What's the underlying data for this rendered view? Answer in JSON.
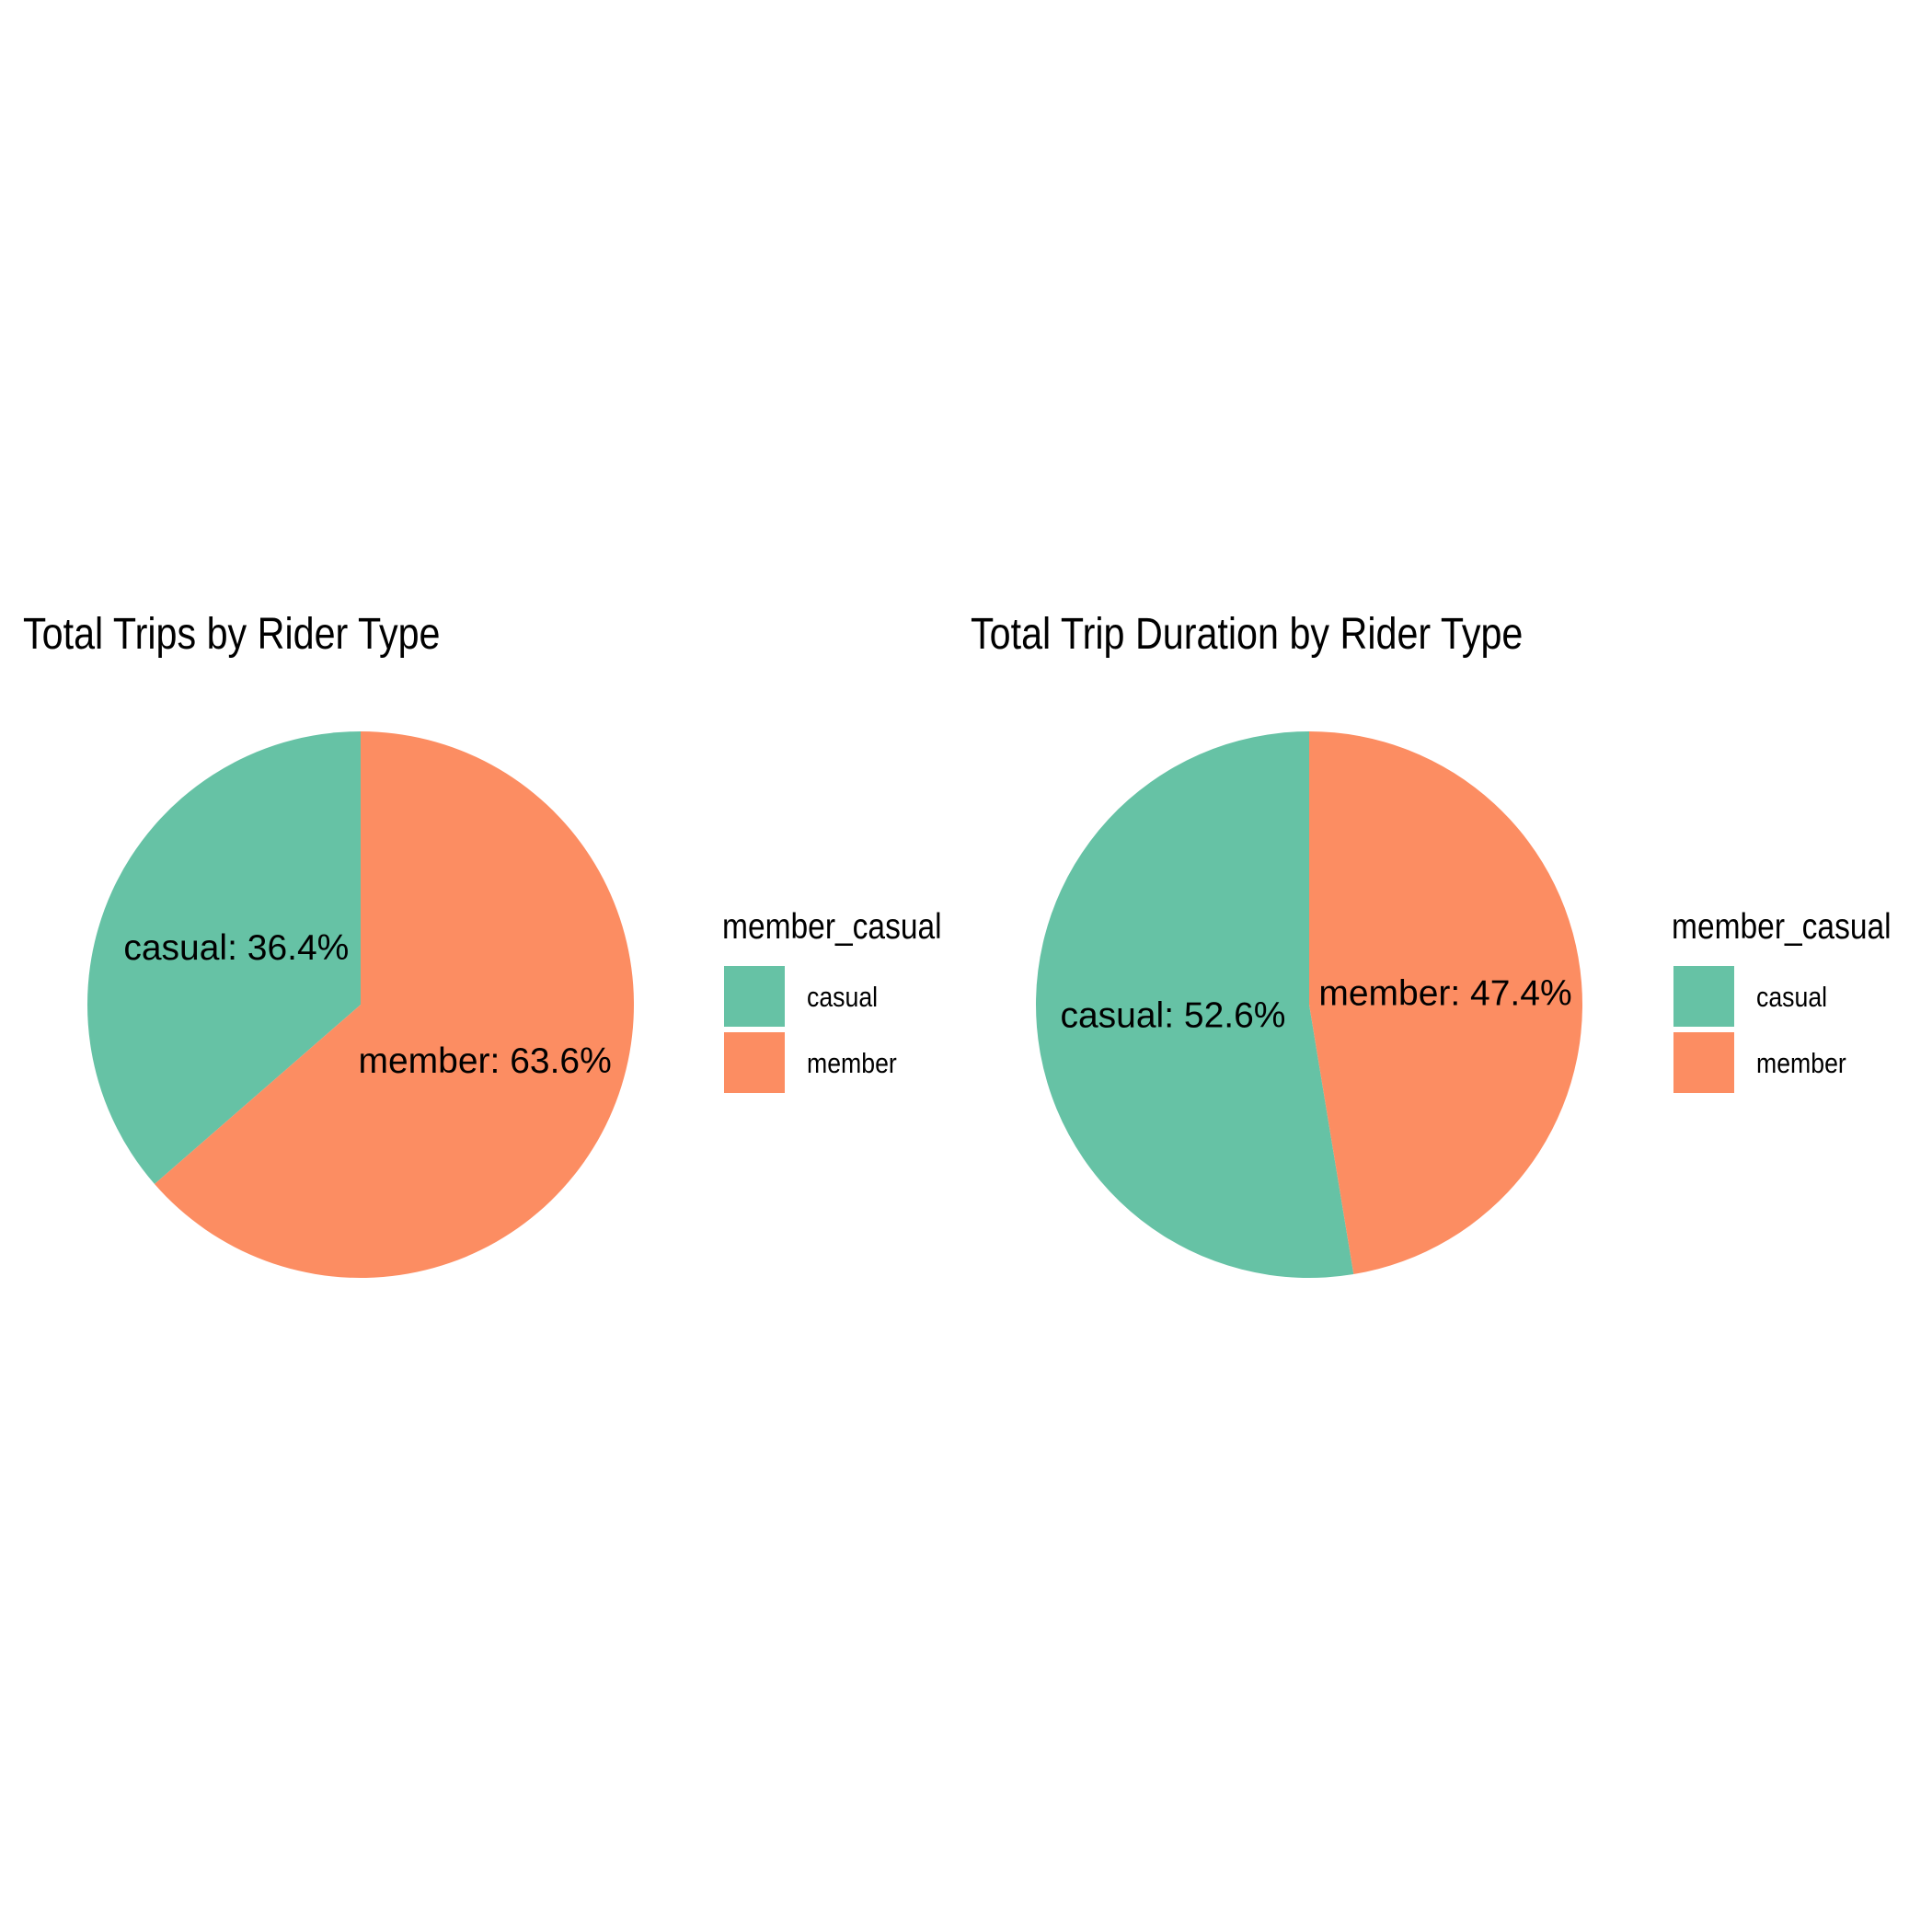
{
  "charts": [
    {
      "title": "Total Trips by Rider Type",
      "legend_title": "member_casual",
      "legend_items": [
        "casual",
        "member"
      ],
      "slice_labels": [
        "casual: 36.4%",
        "member: 63.6%"
      ]
    },
    {
      "title": "Total Trip Duration by Rider Type",
      "legend_title": "member_casual",
      "legend_items": [
        "casual",
        "member"
      ],
      "slice_labels": [
        "casual: 52.6%",
        "member: 47.4%"
      ]
    }
  ],
  "colors": {
    "casual": "#66c2a5",
    "member": "#fc8d62"
  },
  "chart_data": [
    {
      "type": "pie",
      "title": "Total Trips by Rider Type",
      "legend_title": "member_casual",
      "legend_position": "right",
      "categories": [
        "casual",
        "member"
      ],
      "values": [
        36.4,
        63.6
      ],
      "unit": "%",
      "labels": [
        "casual: 36.4%",
        "member: 63.6%"
      ],
      "colors": [
        "#66c2a5",
        "#fc8d62"
      ]
    },
    {
      "type": "pie",
      "title": "Total Trip Duration by Rider Type",
      "legend_title": "member_casual",
      "legend_position": "right",
      "categories": [
        "casual",
        "member"
      ],
      "values": [
        52.6,
        47.4
      ],
      "unit": "%",
      "labels": [
        "casual: 52.6%",
        "member: 47.4%"
      ],
      "colors": [
        "#66c2a5",
        "#fc8d62"
      ]
    }
  ]
}
